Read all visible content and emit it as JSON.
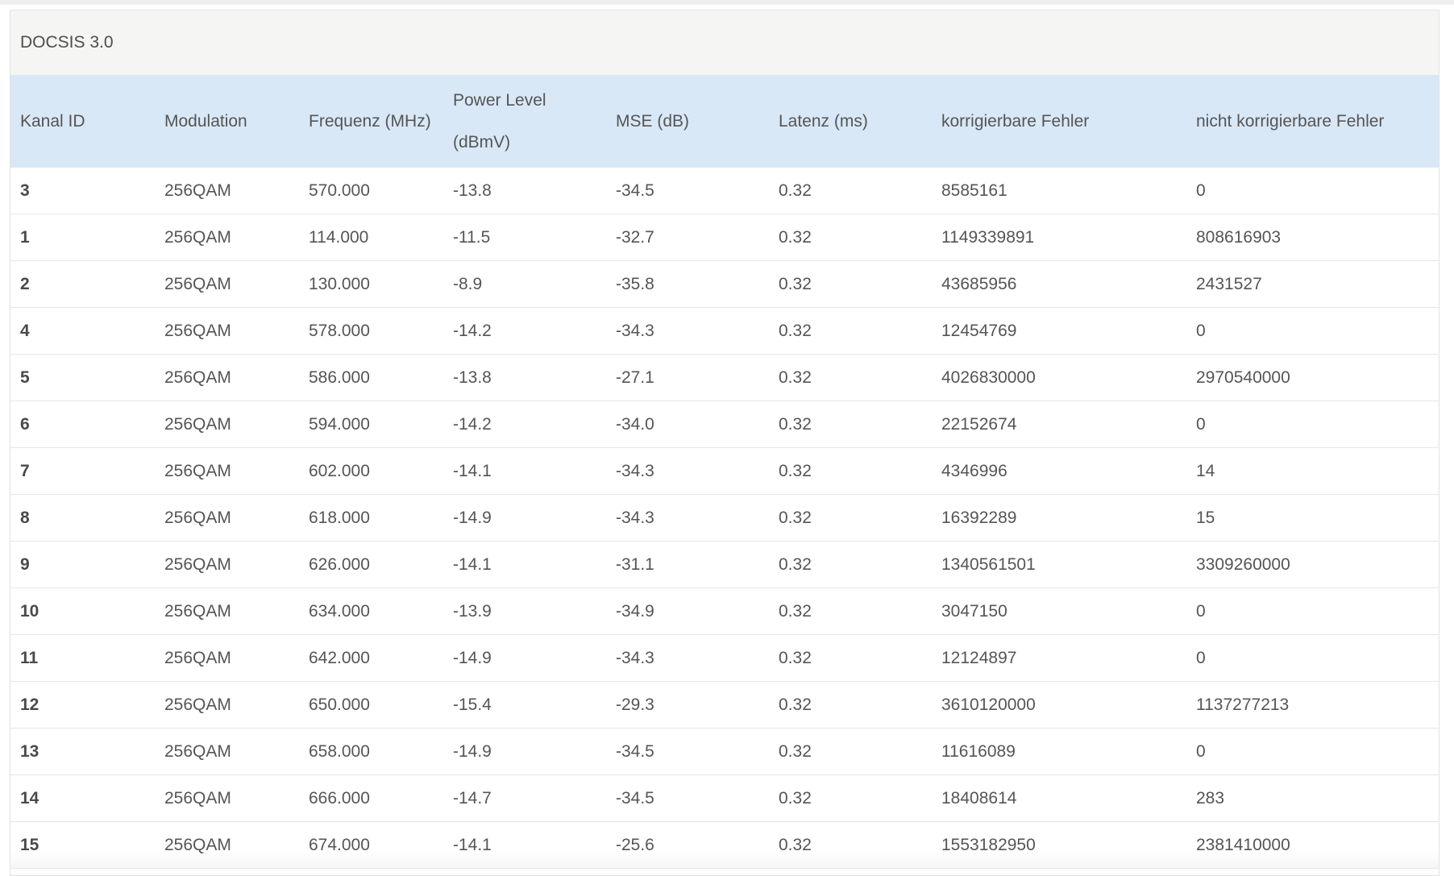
{
  "panel": {
    "title": "DOCSIS 3.0"
  },
  "table": {
    "headers": {
      "kanal_id": "Kanal ID",
      "modulation": "Modulation",
      "frequenz": "Frequenz (MHz)",
      "power_level_line1": "Power Level",
      "power_level_line2": "(dBmV)",
      "mse": "MSE (dB)",
      "latenz": "Latenz (ms)",
      "korrigierbare": "korrigierbare Fehler",
      "nicht_korrigierbare": "nicht korrigierbare Fehler"
    },
    "rows": [
      {
        "kanal_id": "3",
        "modulation": "256QAM",
        "frequenz": "570.000",
        "power": "-13.8",
        "mse": "-34.5",
        "latenz": "0.32",
        "korrigierbare": "8585161",
        "nicht_korrigierbare": "0"
      },
      {
        "kanal_id": "1",
        "modulation": "256QAM",
        "frequenz": "114.000",
        "power": "-11.5",
        "mse": "-32.7",
        "latenz": "0.32",
        "korrigierbare": "1149339891",
        "nicht_korrigierbare": "808616903"
      },
      {
        "kanal_id": "2",
        "modulation": "256QAM",
        "frequenz": "130.000",
        "power": "-8.9",
        "mse": "-35.8",
        "latenz": "0.32",
        "korrigierbare": "43685956",
        "nicht_korrigierbare": "2431527"
      },
      {
        "kanal_id": "4",
        "modulation": "256QAM",
        "frequenz": "578.000",
        "power": "-14.2",
        "mse": "-34.3",
        "latenz": "0.32",
        "korrigierbare": "12454769",
        "nicht_korrigierbare": "0"
      },
      {
        "kanal_id": "5",
        "modulation": "256QAM",
        "frequenz": "586.000",
        "power": "-13.8",
        "mse": "-27.1",
        "latenz": "0.32",
        "korrigierbare": "4026830000",
        "nicht_korrigierbare": "2970540000"
      },
      {
        "kanal_id": "6",
        "modulation": "256QAM",
        "frequenz": "594.000",
        "power": "-14.2",
        "mse": "-34.0",
        "latenz": "0.32",
        "korrigierbare": "22152674",
        "nicht_korrigierbare": "0"
      },
      {
        "kanal_id": "7",
        "modulation": "256QAM",
        "frequenz": "602.000",
        "power": "-14.1",
        "mse": "-34.3",
        "latenz": "0.32",
        "korrigierbare": "4346996",
        "nicht_korrigierbare": "14"
      },
      {
        "kanal_id": "8",
        "modulation": "256QAM",
        "frequenz": "618.000",
        "power": "-14.9",
        "mse": "-34.3",
        "latenz": "0.32",
        "korrigierbare": "16392289",
        "nicht_korrigierbare": "15"
      },
      {
        "kanal_id": "9",
        "modulation": "256QAM",
        "frequenz": "626.000",
        "power": "-14.1",
        "mse": "-31.1",
        "latenz": "0.32",
        "korrigierbare": "1340561501",
        "nicht_korrigierbare": "3309260000"
      },
      {
        "kanal_id": "10",
        "modulation": "256QAM",
        "frequenz": "634.000",
        "power": "-13.9",
        "mse": "-34.9",
        "latenz": "0.32",
        "korrigierbare": "3047150",
        "nicht_korrigierbare": "0"
      },
      {
        "kanal_id": "11",
        "modulation": "256QAM",
        "frequenz": "642.000",
        "power": "-14.9",
        "mse": "-34.3",
        "latenz": "0.32",
        "korrigierbare": "12124897",
        "nicht_korrigierbare": "0"
      },
      {
        "kanal_id": "12",
        "modulation": "256QAM",
        "frequenz": "650.000",
        "power": "-15.4",
        "mse": "-29.3",
        "latenz": "0.32",
        "korrigierbare": "3610120000",
        "nicht_korrigierbare": "1137277213"
      },
      {
        "kanal_id": "13",
        "modulation": "256QAM",
        "frequenz": "658.000",
        "power": "-14.9",
        "mse": "-34.5",
        "latenz": "0.32",
        "korrigierbare": "11616089",
        "nicht_korrigierbare": "0"
      },
      {
        "kanal_id": "14",
        "modulation": "256QAM",
        "frequenz": "666.000",
        "power": "-14.7",
        "mse": "-34.5",
        "latenz": "0.32",
        "korrigierbare": "18408614",
        "nicht_korrigierbare": "283"
      },
      {
        "kanal_id": "15",
        "modulation": "256QAM",
        "frequenz": "674.000",
        "power": "-14.1",
        "mse": "-25.6",
        "latenz": "0.32",
        "korrigierbare": "1553182950",
        "nicht_korrigierbare": "2381410000"
      }
    ]
  }
}
